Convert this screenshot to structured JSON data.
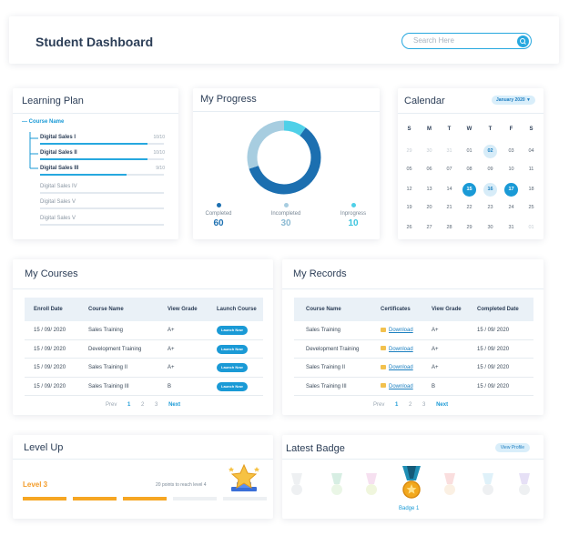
{
  "header": {
    "title": "Student Dashboard",
    "search_placeholder": "Search Here"
  },
  "learning_plan": {
    "title": "Learning Plan",
    "course_name": "Course Name",
    "items": [
      {
        "label": "Digital Sales I",
        "score": "10/10",
        "progress": 0.87
      },
      {
        "label": "Digital Sales II",
        "score": "10/10",
        "progress": 0.87
      },
      {
        "label": "Digital Sales III",
        "score": "9/10",
        "progress": 0.7
      },
      {
        "label": "Digital Sales IV",
        "score": "",
        "progress": 0
      },
      {
        "label": "Digital Sales V",
        "score": "",
        "progress": 0
      },
      {
        "label": "Digital Sales V",
        "score": "",
        "progress": 0
      }
    ]
  },
  "progress": {
    "title": "My Progress",
    "stats": [
      {
        "label": "Completed",
        "value": "60",
        "color": "#1c6fb0"
      },
      {
        "label": "Incompleted",
        "value": "30",
        "color": "#a7cde0"
      },
      {
        "label": "Inprogress",
        "value": "10",
        "color": "#4fd0e8"
      }
    ]
  },
  "calendar": {
    "title": "Calendar",
    "month": "January 2020",
    "weekdays": [
      "S",
      "M",
      "T",
      "W",
      "T",
      "F",
      "S"
    ],
    "weeks": [
      [
        "29",
        "30",
        "31",
        "01",
        "02",
        "03",
        "04"
      ],
      [
        "05",
        "06",
        "07",
        "08",
        "09",
        "10",
        "11"
      ],
      [
        "12",
        "13",
        "14",
        "15",
        "16",
        "17",
        "18"
      ],
      [
        "19",
        "20",
        "21",
        "22",
        "23",
        "24",
        "25"
      ],
      [
        "26",
        "27",
        "28",
        "29",
        "30",
        "31",
        "01"
      ]
    ]
  },
  "courses": {
    "title": "My Courses",
    "headers": [
      "Enroll Date",
      "Course Name",
      "View Grade",
      "Launch Course"
    ],
    "rows": [
      {
        "date": "15 / 09/ 2020",
        "name": "Sales Training",
        "grade": "A+",
        "action": "Launch Now"
      },
      {
        "date": "15 / 09/ 2020",
        "name": "Development  Training",
        "grade": "A+",
        "action": "Launch Now"
      },
      {
        "date": "15 / 09/ 2020",
        "name": "Sales Training II",
        "grade": "A+",
        "action": "Launch Now"
      },
      {
        "date": "15 / 09/ 2020",
        "name": "Sales Training III",
        "grade": "B",
        "action": "Launch Now"
      }
    ],
    "pager": {
      "prev": "Prev",
      "pages": [
        "1",
        "2",
        "3"
      ],
      "next": "Next"
    }
  },
  "records": {
    "title": "My Records",
    "headers": [
      "Course Name",
      "Certificates",
      "View Grade",
      "Completed Date"
    ],
    "rows": [
      {
        "name": "Sales Training",
        "cert": "Download",
        "grade": "A+",
        "date": "15 / 09/ 2020"
      },
      {
        "name": "Development  Training",
        "cert": "Download",
        "grade": "A+",
        "date": "15 / 09/ 2020"
      },
      {
        "name": "Sales Training II",
        "cert": "Download",
        "grade": "A+",
        "date": "15 / 09/ 2020"
      },
      {
        "name": "Sales Training III",
        "cert": "Download",
        "grade": "B",
        "date": "15 / 09/ 2020"
      }
    ],
    "pager": {
      "prev": "Prev",
      "pages": [
        "1",
        "2",
        "3"
      ],
      "next": "Next"
    }
  },
  "level_up": {
    "title": "Level Up",
    "level": "Level 3",
    "hint": "20 points to reach level 4",
    "segments_filled": 3,
    "segments_total": 5
  },
  "badge": {
    "title": "Latest Badge",
    "view_profile": "View Profile",
    "badge_name": "Badge 1"
  }
}
